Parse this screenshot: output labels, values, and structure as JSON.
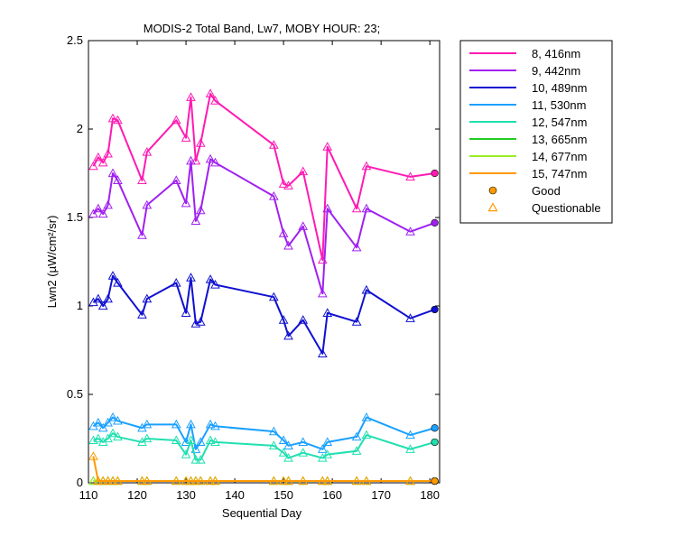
{
  "chart_data": {
    "type": "line",
    "title": "MODIS-2 Total Band, Lw7, MOBY HOUR: 23;",
    "xlabel": "Sequential Day",
    "ylabel": "Lwn2 (µW/cm²/sr)",
    "xlim": [
      110,
      182
    ],
    "ylim": [
      0,
      2.5
    ],
    "xticks": [
      110,
      120,
      130,
      140,
      150,
      160,
      170,
      180
    ],
    "yticks": [
      0,
      0.5,
      1,
      1.5,
      2,
      2.5
    ],
    "ytick_labels": [
      "0",
      "0.5",
      "1",
      "1.5",
      "2",
      "2.5"
    ],
    "legend_position": "outside-top-right",
    "grid": false,
    "x": [
      111,
      112,
      113,
      114,
      115,
      116,
      121,
      122,
      128,
      130,
      131,
      132,
      133,
      135,
      136,
      148,
      150,
      151,
      154,
      158,
      159,
      165,
      167,
      176,
      181
    ],
    "series": [
      {
        "name": "8, 416nm",
        "color": "#ff1ab3",
        "values": [
          1.79,
          1.84,
          1.81,
          1.86,
          2.06,
          2.05,
          1.71,
          1.87,
          2.05,
          1.95,
          2.18,
          1.82,
          1.92,
          2.2,
          2.16,
          1.91,
          1.69,
          1.68,
          1.76,
          1.26,
          1.9,
          1.55,
          1.79,
          1.73,
          1.75
        ]
      },
      {
        "name": "9, 442nm",
        "color": "#a020f0",
        "values": [
          1.52,
          1.55,
          1.52,
          1.57,
          1.75,
          1.71,
          1.4,
          1.57,
          1.71,
          1.58,
          1.82,
          1.48,
          1.54,
          1.83,
          1.81,
          1.62,
          1.41,
          1.34,
          1.45,
          1.07,
          1.55,
          1.33,
          1.55,
          1.42,
          1.47
        ]
      },
      {
        "name": "10, 489nm",
        "color": "#1010d0",
        "values": [
          1.02,
          1.04,
          1.0,
          1.04,
          1.17,
          1.13,
          0.95,
          1.04,
          1.13,
          0.96,
          1.16,
          0.9,
          0.91,
          1.15,
          1.12,
          1.05,
          0.92,
          0.83,
          0.92,
          0.73,
          0.96,
          0.91,
          1.09,
          0.93,
          0.98
        ]
      },
      {
        "name": "11, 530nm",
        "color": "#1aa0ff",
        "values": [
          0.32,
          0.34,
          0.31,
          0.34,
          0.37,
          0.35,
          0.31,
          0.33,
          0.33,
          0.23,
          0.33,
          0.19,
          0.23,
          0.33,
          0.32,
          0.29,
          0.24,
          0.21,
          0.23,
          0.19,
          0.23,
          0.26,
          0.37,
          0.27,
          0.31
        ]
      },
      {
        "name": "12, 547nm",
        "color": "#20e0b0",
        "values": [
          0.24,
          0.25,
          0.23,
          0.25,
          0.28,
          0.26,
          0.23,
          0.25,
          0.24,
          0.16,
          0.24,
          0.13,
          0.13,
          0.24,
          0.23,
          0.21,
          0.17,
          0.14,
          0.17,
          0.14,
          0.16,
          0.18,
          0.27,
          0.19,
          0.23
        ]
      },
      {
        "name": "13, 665nm",
        "color": "#22cc22",
        "values": [
          0.01,
          0.01,
          0.01,
          0.01,
          0.01,
          0.01,
          0.01,
          0.01,
          0.01,
          0.01,
          0.01,
          0.01,
          0.01,
          0.01,
          0.01,
          0.01,
          0.01,
          0.01,
          0.01,
          0.01,
          0.01,
          0.01,
          0.01,
          0.01,
          0.01
        ]
      },
      {
        "name": "14, 677nm",
        "color": "#99ee22",
        "values": [
          0.01,
          0.01,
          0.01,
          0.01,
          0.01,
          0.01,
          0.01,
          0.01,
          0.01,
          0.01,
          0.01,
          0.01,
          0.01,
          0.01,
          0.01,
          0.01,
          0.01,
          0.01,
          0.01,
          0.01,
          0.01,
          0.01,
          0.01,
          0.01,
          0.01
        ]
      },
      {
        "name": "15, 747nm",
        "color": "#ff9900",
        "values": [
          0.15,
          0.01,
          0.01,
          0.01,
          0.01,
          0.01,
          0.01,
          0.01,
          0.01,
          0.01,
          0.01,
          0.01,
          0.01,
          0.01,
          0.01,
          0.01,
          0.01,
          0.01,
          0.01,
          0.01,
          0.01,
          0.01,
          0.01,
          0.01,
          0.01
        ]
      }
    ],
    "good_marker": {
      "label": "Good",
      "symbol": "circle",
      "x": 181
    },
    "questionable_marker": {
      "label": "Questionable",
      "symbol": "triangle"
    }
  }
}
